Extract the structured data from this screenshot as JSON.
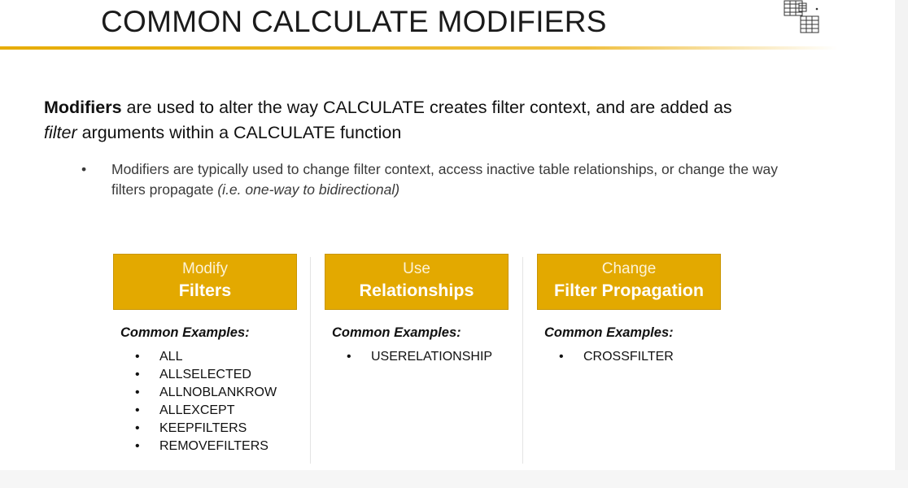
{
  "title": "COMMON CALCULATE MODIFIERS",
  "lead": {
    "bold_start": "Modifiers",
    "part1": " are used to alter the way CALCULATE creates filter context, and are added as ",
    "italic_word": "filter",
    "part2": " arguments within a CALCULATE function"
  },
  "sub_bullet": {
    "symbol": "•",
    "text": "Modifiers are typically used to change filter context, access inactive table relationships, or change the way filters propagate ",
    "italic_tail": "(i.e. one-way to bidirectional)"
  },
  "columns": [
    {
      "header_top": "Modify",
      "header_bottom": "Filters",
      "examples_label": "Common Examples:",
      "items": [
        "ALL",
        "ALLSELECTED",
        "ALLNOBLANKROW",
        "ALLEXCEPT",
        "KEEPFILTERS",
        "REMOVEFILTERS"
      ]
    },
    {
      "header_top": "Use",
      "header_bottom": "Relationships",
      "examples_label": "Common Examples:",
      "items": [
        "USERELATIONSHIP"
      ]
    },
    {
      "header_top": "Change",
      "header_bottom": "Filter Propagation",
      "examples_label": "Common Examples:",
      "items": [
        "CROSSFILTER"
      ]
    }
  ],
  "bullet_symbol": "•",
  "icons": {
    "corner": "table-icon"
  },
  "colors": {
    "accent": "#e3a900",
    "rule": "#e6ac00"
  }
}
